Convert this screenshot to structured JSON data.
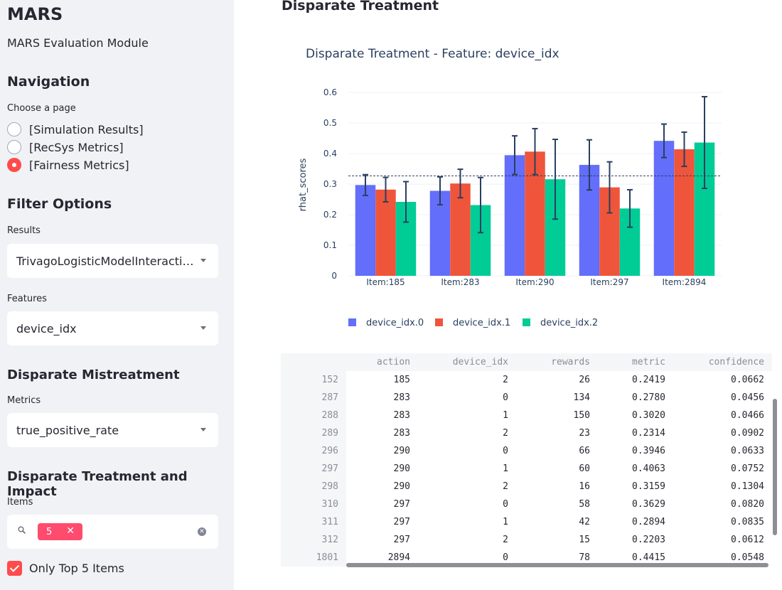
{
  "sidebar": {
    "title": "MARS",
    "subtitle": "MARS Evaluation Module",
    "navigation": {
      "heading": "Navigation",
      "label": "Choose a page",
      "options": [
        "[Simulation Results]",
        "[RecSys Metrics]",
        "[Fairness Metrics]"
      ],
      "selected": "[Fairness Metrics]"
    },
    "filter": {
      "heading": "Filter Options",
      "results_label": "Results",
      "results_value": "TrivagoLogisticModelInteraction_...",
      "features_label": "Features",
      "features_value": "device_idx"
    },
    "mistreatment": {
      "heading": "Disparate Mistreatment",
      "metrics_label": "Metrics",
      "metrics_value": "true_positive_rate"
    },
    "treatment": {
      "heading": "Disparate Treatment and Impact",
      "items_label": "Items",
      "chip_value": "5",
      "checkbox_label": "Only Top 5 Items",
      "checkbox_checked": true
    }
  },
  "main": {
    "title": "Disparate Treatment"
  },
  "colors": {
    "accent": "#ff4b4b",
    "chip": "#ff4b6e",
    "series0": "#636efa",
    "series1": "#ef553b",
    "series2": "#00cc96",
    "errorbar": "#2a3f5f"
  },
  "chart_data": {
    "type": "bar",
    "title": "Disparate Treatment - Feature: device_idx",
    "xlabel": "",
    "ylabel": "rhat_scores",
    "ylim": [
      0,
      0.6
    ],
    "yticks": [
      0,
      0.1,
      0.2,
      0.3,
      0.4,
      0.5,
      0.6
    ],
    "ytick_labels": [
      "0",
      "0.1",
      "0.2",
      "0.3",
      "0.4",
      "0.5",
      "0.6"
    ],
    "categories": [
      "Item:185",
      "Item:283",
      "Item:290",
      "Item:297",
      "Item:2894"
    ],
    "reference_line": 0.327,
    "legend_position": "bottom",
    "series": [
      {
        "name": "device_idx.0",
        "values": [
          0.297,
          0.278,
          0.3946,
          0.3629,
          0.4415
        ],
        "errors": [
          0.034,
          0.0456,
          0.0633,
          0.082,
          0.0548
        ]
      },
      {
        "name": "device_idx.1",
        "values": [
          0.282,
          0.302,
          0.4063,
          0.2894,
          0.414
        ],
        "errors": [
          0.04,
          0.0466,
          0.0752,
          0.0835,
          0.056
        ]
      },
      {
        "name": "device_idx.2",
        "values": [
          0.2419,
          0.2314,
          0.3159,
          0.2203,
          0.436
        ],
        "errors": [
          0.0662,
          0.0902,
          0.1304,
          0.0612,
          0.15
        ]
      }
    ]
  },
  "table": {
    "columns": [
      "action",
      "device_idx",
      "rewards",
      "metric",
      "confidence"
    ],
    "rows": [
      {
        "index": "152",
        "cells": [
          "185",
          "2",
          "26",
          "0.2419",
          "0.0662"
        ]
      },
      {
        "index": "287",
        "cells": [
          "283",
          "0",
          "134",
          "0.2780",
          "0.0456"
        ]
      },
      {
        "index": "288",
        "cells": [
          "283",
          "1",
          "150",
          "0.3020",
          "0.0466"
        ]
      },
      {
        "index": "289",
        "cells": [
          "283",
          "2",
          "23",
          "0.2314",
          "0.0902"
        ]
      },
      {
        "index": "296",
        "cells": [
          "290",
          "0",
          "66",
          "0.3946",
          "0.0633"
        ]
      },
      {
        "index": "297",
        "cells": [
          "290",
          "1",
          "60",
          "0.4063",
          "0.0752"
        ]
      },
      {
        "index": "298",
        "cells": [
          "290",
          "2",
          "16",
          "0.3159",
          "0.1304"
        ]
      },
      {
        "index": "310",
        "cells": [
          "297",
          "0",
          "58",
          "0.3629",
          "0.0820"
        ]
      },
      {
        "index": "311",
        "cells": [
          "297",
          "1",
          "42",
          "0.2894",
          "0.0835"
        ]
      },
      {
        "index": "312",
        "cells": [
          "297",
          "2",
          "15",
          "0.2203",
          "0.0612"
        ]
      },
      {
        "index": "1801",
        "cells": [
          "2894",
          "0",
          "78",
          "0.4415",
          "0.0548"
        ]
      }
    ]
  }
}
